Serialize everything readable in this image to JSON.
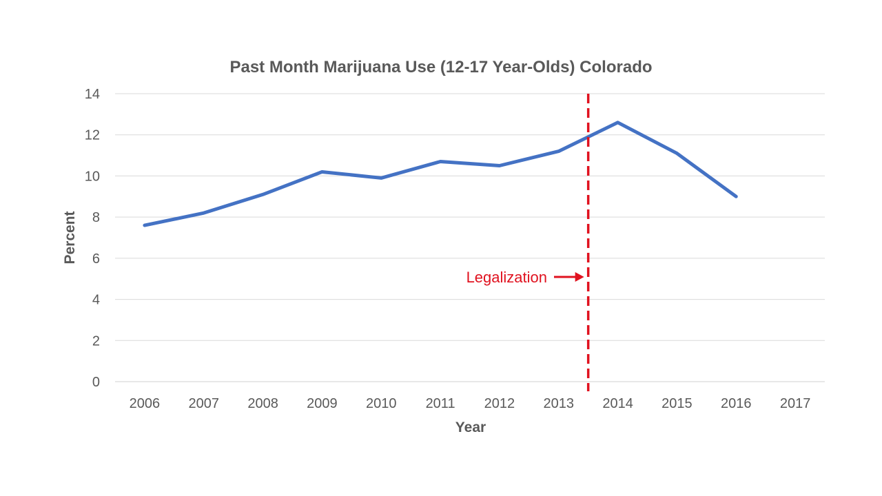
{
  "chart_data": {
    "type": "line",
    "title": "Past Month Marijuana Use (12-17 Year-Olds) Colorado",
    "xlabel": "Year",
    "ylabel": "Percent",
    "categories": [
      "2006",
      "2007",
      "2008",
      "2009",
      "2010",
      "2011",
      "2012",
      "2013",
      "2014",
      "2015",
      "2016",
      "2017"
    ],
    "series": [
      {
        "values": [
          7.6,
          8.2,
          9.1,
          10.2,
          9.9,
          10.7,
          10.5,
          11.2,
          12.6,
          11.1,
          9.0,
          null
        ],
        "color": "#4472C4"
      }
    ],
    "ylim": [
      0,
      14
    ],
    "yticks": [
      "0",
      "2",
      "4",
      "6",
      "8",
      "10",
      "12",
      "14"
    ],
    "grid": true,
    "legend": "none",
    "annotation": {
      "label": "Legalization",
      "position_between": [
        "2013",
        "2014"
      ],
      "color": "#E0121F",
      "style": "dashed vertical line with arrow"
    }
  }
}
